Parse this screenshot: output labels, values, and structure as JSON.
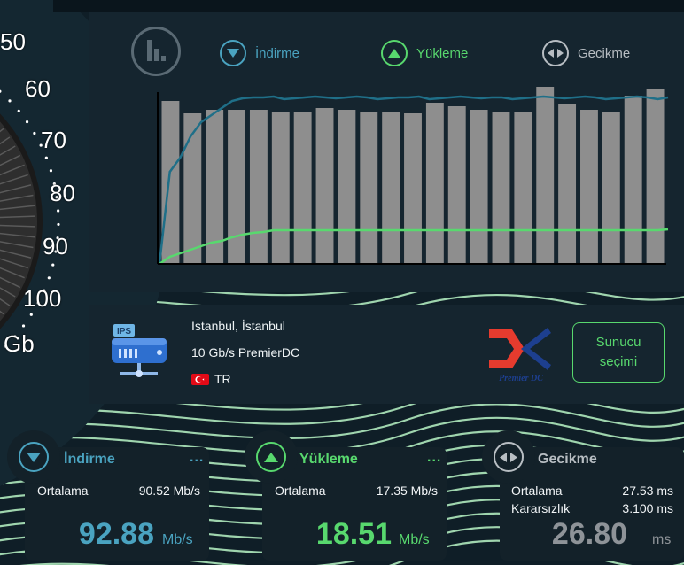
{
  "gauge": {
    "labels": [
      "50",
      "60",
      "70",
      "80",
      "90",
      "100"
    ],
    "unit": "Gb"
  },
  "legend": {
    "download": {
      "label": "İndirme",
      "color": "#4aa3c0"
    },
    "upload": {
      "label": "Yükleme",
      "color": "#58d86e"
    },
    "latency": {
      "label": "Gecikme",
      "color": "#b8bec3"
    }
  },
  "chart_data": {
    "type": "bar",
    "bar_color": "#8e8e8e",
    "values": [
      0.92,
      0.85,
      0.87,
      0.87,
      0.87,
      0.86,
      0.86,
      0.88,
      0.87,
      0.86,
      0.86,
      0.85,
      0.91,
      0.89,
      0.87,
      0.86,
      0.86,
      1.0,
      0.9,
      0.87,
      0.86,
      0.95,
      0.99
    ],
    "series": [
      {
        "color": "#1f6f88",
        "values": [
          0.0,
          0.52,
          0.6,
          0.72,
          0.8,
          0.84,
          0.88,
          0.92,
          0.935,
          0.94,
          0.94,
          0.945,
          0.93,
          0.935,
          0.94,
          0.945,
          0.94,
          0.935,
          0.94,
          0.945,
          0.94,
          0.93,
          0.935,
          0.94,
          0.94,
          0.945,
          0.93,
          0.935,
          0.94,
          0.945,
          0.94,
          0.935,
          0.94,
          0.94,
          0.93,
          0.935,
          0.94,
          0.945,
          0.94,
          0.935,
          0.94,
          0.945,
          0.94,
          0.93,
          0.935,
          0.94,
          0.945,
          0.94,
          0.93,
          0.94
        ]
      },
      {
        "color": "#58d86e",
        "values": [
          0.0,
          0.04,
          0.06,
          0.08,
          0.1,
          0.12,
          0.13,
          0.15,
          0.165,
          0.175,
          0.18,
          0.19,
          0.19,
          0.19,
          0.19,
          0.19,
          0.19,
          0.19,
          0.19,
          0.19,
          0.19,
          0.19,
          0.19,
          0.19,
          0.19,
          0.19,
          0.19,
          0.19,
          0.19,
          0.19,
          0.19,
          0.19,
          0.19,
          0.19,
          0.19,
          0.19,
          0.19,
          0.19,
          0.19,
          0.19,
          0.19,
          0.19,
          0.19,
          0.19,
          0.19,
          0.19,
          0.19,
          0.19,
          0.19,
          0.195
        ]
      }
    ]
  },
  "server": {
    "badge": "IPS",
    "location": "Istanbul, İstanbul",
    "name": "10 Gb/s PremierDC",
    "country": "TR",
    "logo_text": "Premier DC",
    "select_label_line1": "Sunucu",
    "select_label_line2": "seçimi"
  },
  "stats": {
    "download": {
      "title": "İndirme",
      "more": "...",
      "avg_label": "Ortalama",
      "avg_value": "90.52 Mb/s",
      "value": "92.88",
      "unit": "Mb/s"
    },
    "upload": {
      "title": "Yükleme",
      "more": "...",
      "avg_label": "Ortalama",
      "avg_value": "17.35 Mb/s",
      "value": "18.51",
      "unit": "Mb/s"
    },
    "latency": {
      "title": "Gecikme",
      "avg_label": "Ortalama",
      "avg_value": "27.53 ms",
      "jitter_label": "Kararsızlık",
      "jitter_value": "3.100 ms",
      "value": "26.80",
      "unit": "ms"
    }
  }
}
